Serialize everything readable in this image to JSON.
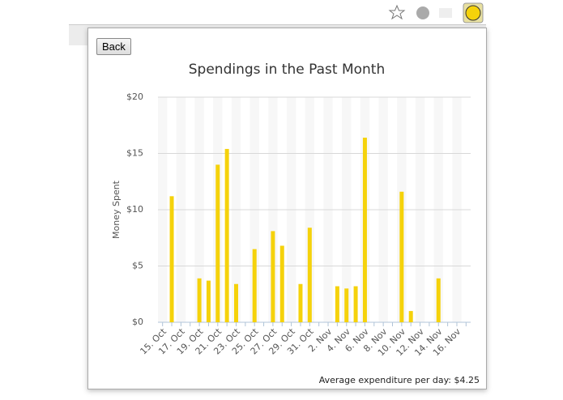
{
  "ui": {
    "back_button": "Back",
    "footer": "Average expenditure per day: $4.25"
  },
  "chart_data": {
    "type": "bar",
    "title": "Spendings in the Past Month",
    "y_label": "Money Spent",
    "categories": [
      "15. Oct",
      null,
      "17. Oct",
      null,
      "19. Oct",
      null,
      "21. Oct",
      null,
      "23. Oct",
      null,
      "25. Oct",
      null,
      "27. Oct",
      null,
      "29. Oct",
      null,
      "31. Oct",
      null,
      "2. Nov",
      null,
      "4. Nov",
      null,
      "6. Nov",
      null,
      "8. Nov",
      null,
      "10. Nov",
      null,
      "12. Nov",
      null,
      "14. Nov",
      null,
      "16. Nov",
      null
    ],
    "values": [
      0,
      11.2,
      0,
      0,
      3.9,
      3.7,
      14,
      15.4,
      3.4,
      0,
      6.5,
      0,
      8.1,
      6.8,
      0,
      3.4,
      8.4,
      0,
      0,
      3.2,
      3.0,
      3.2,
      16.4,
      0,
      0,
      0,
      11.6,
      1.0,
      0,
      0,
      3.9,
      0,
      0,
      0
    ],
    "color": "#f5d20b",
    "ylim": [
      0,
      20
    ],
    "yticks": [
      {
        "value": 0,
        "label": "$0"
      },
      {
        "value": 5,
        "label": "$5"
      },
      {
        "value": 10,
        "label": "$10"
      },
      {
        "value": 15,
        "label": "$15"
      },
      {
        "value": 20,
        "label": "$20"
      }
    ],
    "grid": true
  }
}
